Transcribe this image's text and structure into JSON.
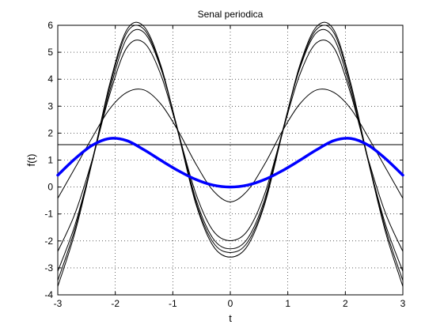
{
  "chart_data": {
    "type": "line",
    "title": "Senal periodica",
    "xlabel": "t",
    "ylabel": "f(t)",
    "xlim": [
      -3,
      3
    ],
    "ylim": [
      -4,
      6
    ],
    "grid": true,
    "x_ticks": [
      "-3",
      "-2",
      "-1",
      "0",
      "1",
      "2",
      "3"
    ],
    "y_ticks": [
      "-4",
      "-3",
      "-2",
      "-1",
      "0",
      "1",
      "2",
      "3",
      "4",
      "5",
      "6"
    ],
    "x": [
      -3.0,
      -2.7,
      -2.4,
      -2.1,
      -1.8,
      -1.5,
      -1.2,
      -0.9,
      -0.6,
      -0.3,
      0.0,
      0.3,
      0.6,
      0.9,
      1.2,
      1.5,
      1.8,
      2.1,
      2.4,
      2.7,
      3.0
    ],
    "series": [
      {
        "color": "#000000",
        "width": 1,
        "values": [
          1.57,
          1.57,
          1.57,
          1.57,
          1.57,
          1.57,
          1.57,
          1.57,
          1.57,
          1.57,
          1.57,
          1.57,
          1.57,
          1.57,
          1.57,
          1.57,
          1.57,
          1.57,
          1.57,
          1.57,
          1.57
        ]
      },
      {
        "color": "#000000",
        "width": 1,
        "values": [
          -0.42,
          0.71,
          1.84,
          2.89,
          3.51,
          3.6,
          3.06,
          2.06,
          0.86,
          -0.13,
          -0.55,
          -0.13,
          0.86,
          2.06,
          3.06,
          3.6,
          3.51,
          2.89,
          1.84,
          0.71,
          -0.42
        ]
      },
      {
        "color": "#000000",
        "width": 1,
        "values": [
          -2.39,
          -0.98,
          1.02,
          3.41,
          5.17,
          5.35,
          4.12,
          1.98,
          -0.24,
          -1.62,
          -1.99,
          -1.62,
          -0.24,
          1.98,
          4.12,
          5.35,
          5.17,
          3.41,
          1.02,
          -0.98,
          -2.39
        ]
      },
      {
        "color": "#000000",
        "width": 1,
        "values": [
          -3.13,
          -1.4,
          0.95,
          3.55,
          5.52,
          5.73,
          4.35,
          2.02,
          -0.44,
          -1.91,
          -2.29,
          -1.91,
          -0.44,
          2.02,
          4.35,
          5.73,
          5.52,
          3.55,
          0.95,
          -1.4,
          -3.13
        ]
      },
      {
        "color": "#000000",
        "width": 1,
        "values": [
          -3.47,
          -1.55,
          1.0,
          3.7,
          5.72,
          5.85,
          4.4,
          1.98,
          -0.55,
          -2.05,
          -2.43,
          -2.05,
          -0.55,
          1.98,
          4.4,
          5.85,
          5.72,
          3.7,
          1.0,
          -1.55,
          -3.47
        ]
      },
      {
        "color": "#000000",
        "width": 1,
        "values": [
          -3.69,
          -1.68,
          0.95,
          3.8,
          5.83,
          5.95,
          4.46,
          1.95,
          -0.62,
          -2.18,
          -2.6,
          -2.18,
          -0.62,
          1.95,
          4.46,
          5.95,
          5.83,
          3.8,
          0.95,
          -1.68,
          -3.69
        ]
      },
      {
        "color": "#0000ff",
        "width": 3.5,
        "values": [
          0.44,
          1.05,
          1.55,
          1.8,
          1.72,
          1.38,
          0.98,
          0.6,
          0.28,
          0.07,
          0.0,
          0.07,
          0.28,
          0.6,
          0.98,
          1.38,
          1.72,
          1.8,
          1.55,
          1.05,
          0.44
        ]
      }
    ]
  }
}
